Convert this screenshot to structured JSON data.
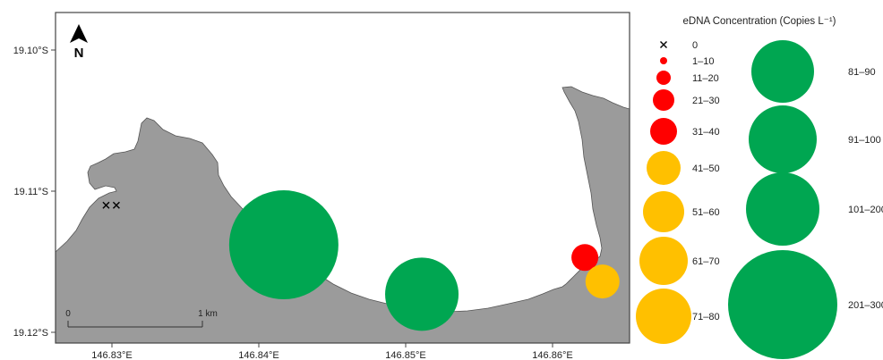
{
  "map": {
    "north_label": "N",
    "lat_labels": [
      "19.10°S",
      "19.11°S",
      "19.12°S"
    ],
    "lon_labels": [
      "146.83°E",
      "146.84°E",
      "146.85°E",
      "146.86°E"
    ],
    "scalebar": {
      "start_label": "0",
      "end_label": "1 km"
    },
    "colors": {
      "land": "#9b9b9b",
      "sea": "#ffffff",
      "high": "#00a651",
      "mid": "#ffc000",
      "low": "#ff0000",
      "absent": "#000000"
    },
    "samples": [
      {
        "lon": 146.8296,
        "lat": -19.111,
        "category": "0"
      },
      {
        "lon": 146.8303,
        "lat": -19.111,
        "category": "0"
      },
      {
        "lon": 146.8417,
        "lat": -19.1138,
        "category": "201–300"
      },
      {
        "lon": 146.8511,
        "lat": -19.1173,
        "category": "101–200"
      },
      {
        "lon": 146.8622,
        "lat": -19.1147,
        "category": "31–40"
      },
      {
        "lon": 146.8634,
        "lat": -19.1164,
        "category": "41–50"
      }
    ]
  },
  "legend": {
    "title": "eDNA Concentration (Copies L⁻¹)",
    "items": [
      {
        "label": "0",
        "kind": "cross"
      },
      {
        "label": "1–10",
        "kind": "low"
      },
      {
        "label": "11–20",
        "kind": "low"
      },
      {
        "label": "21–30",
        "kind": "low"
      },
      {
        "label": "31–40",
        "kind": "low"
      },
      {
        "label": "41–50",
        "kind": "mid"
      },
      {
        "label": "51–60",
        "kind": "mid"
      },
      {
        "label": "61–70",
        "kind": "mid"
      },
      {
        "label": "71–80",
        "kind": "mid"
      },
      {
        "label": "81–90",
        "kind": "high"
      },
      {
        "label": "91–100",
        "kind": "high"
      },
      {
        "label": "101–200",
        "kind": "high"
      },
      {
        "label": "201–300",
        "kind": "high"
      }
    ]
  }
}
